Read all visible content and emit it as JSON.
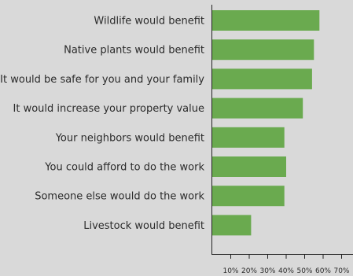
{
  "chart_data": {
    "type": "bar",
    "orientation": "horizontal",
    "categories": [
      "Wildlife would benefit",
      "Native plants would benefit",
      "It would be safe for you and your family",
      "It would increase your property value",
      "Your neighbors would benefit",
      "You could afford to do the work",
      "Someone else would do the work",
      "Livestock would benefit"
    ],
    "values": [
      58,
      55,
      54,
      49,
      39,
      40,
      39,
      21
    ],
    "xlim": [
      0,
      70
    ],
    "ticks": [
      10,
      20,
      30,
      40,
      50,
      60,
      70
    ],
    "tick_labels": [
      "10%",
      "20%",
      "30%",
      "40%",
      "50%",
      "60%",
      "70%"
    ],
    "bar_color": "#6aaa4f",
    "grid": false,
    "legend": "none"
  }
}
